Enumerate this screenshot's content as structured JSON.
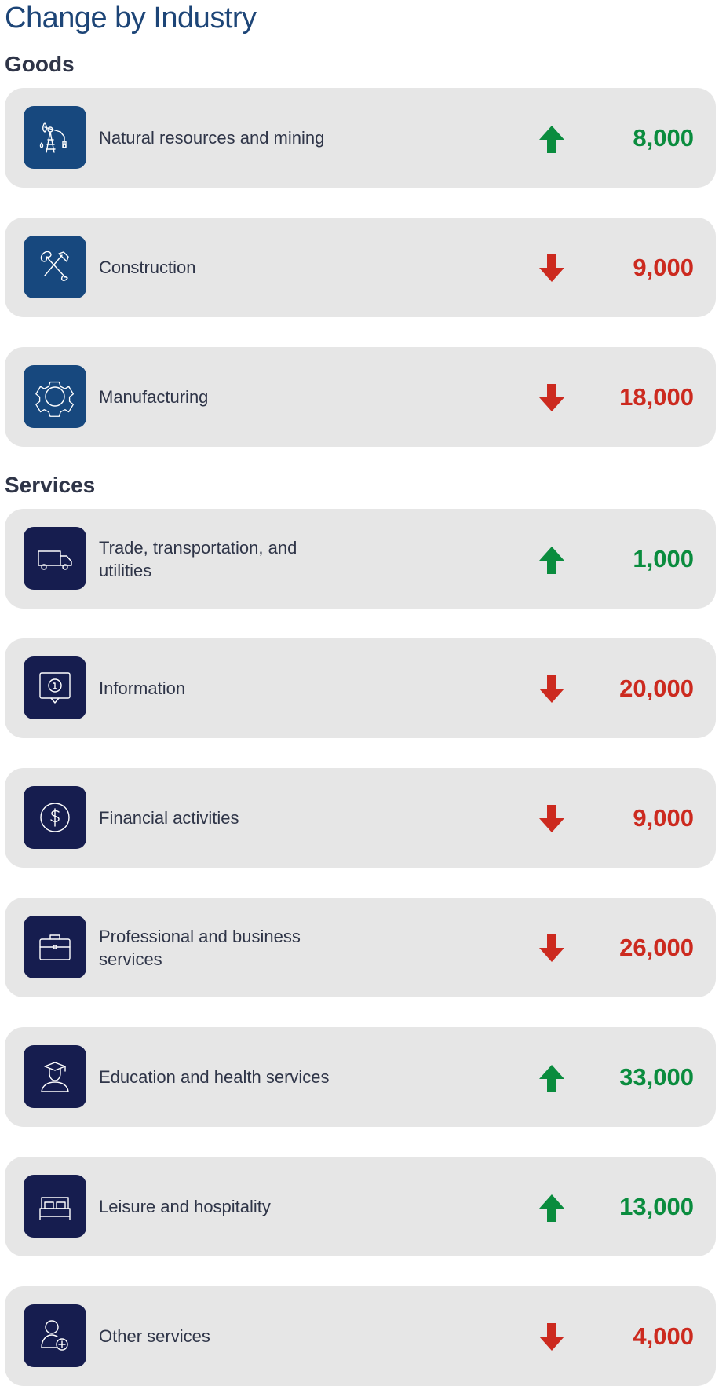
{
  "title": "Change by Industry",
  "colors": {
    "up": "#0a8c3e",
    "down": "#cc2a1f",
    "goods_icon_bg": "#17487e",
    "services_icon_bg": "#161d4f",
    "card_bg": "#e6e6e6"
  },
  "goods": {
    "heading": "Goods",
    "items": [
      {
        "label": "Natural resources and mining",
        "value": "8,000",
        "direction": "up",
        "icon": "oil-pump-icon"
      },
      {
        "label": "Construction",
        "value": "9,000",
        "direction": "down",
        "icon": "shovel-hammer-icon"
      },
      {
        "label": "Manufacturing",
        "value": "18,000",
        "direction": "down",
        "icon": "gear-icon"
      }
    ]
  },
  "services": {
    "heading": "Services",
    "items": [
      {
        "label": "Trade, transportation, and utilities",
        "value": "1,000",
        "direction": "up",
        "icon": "truck-icon"
      },
      {
        "label": "Information",
        "value": "20,000",
        "direction": "down",
        "icon": "info-bubble-icon"
      },
      {
        "label": "Financial activities",
        "value": "9,000",
        "direction": "down",
        "icon": "dollar-coin-icon"
      },
      {
        "label": "Professional and business services",
        "value": "26,000",
        "direction": "down",
        "icon": "briefcase-icon"
      },
      {
        "label": "Education and health services",
        "value": "33,000",
        "direction": "up",
        "icon": "graduate-icon"
      },
      {
        "label": "Leisure and hospitality",
        "value": "13,000",
        "direction": "up",
        "icon": "bed-icon"
      },
      {
        "label": "Other services",
        "value": "4,000",
        "direction": "down",
        "icon": "person-plus-icon"
      }
    ]
  }
}
